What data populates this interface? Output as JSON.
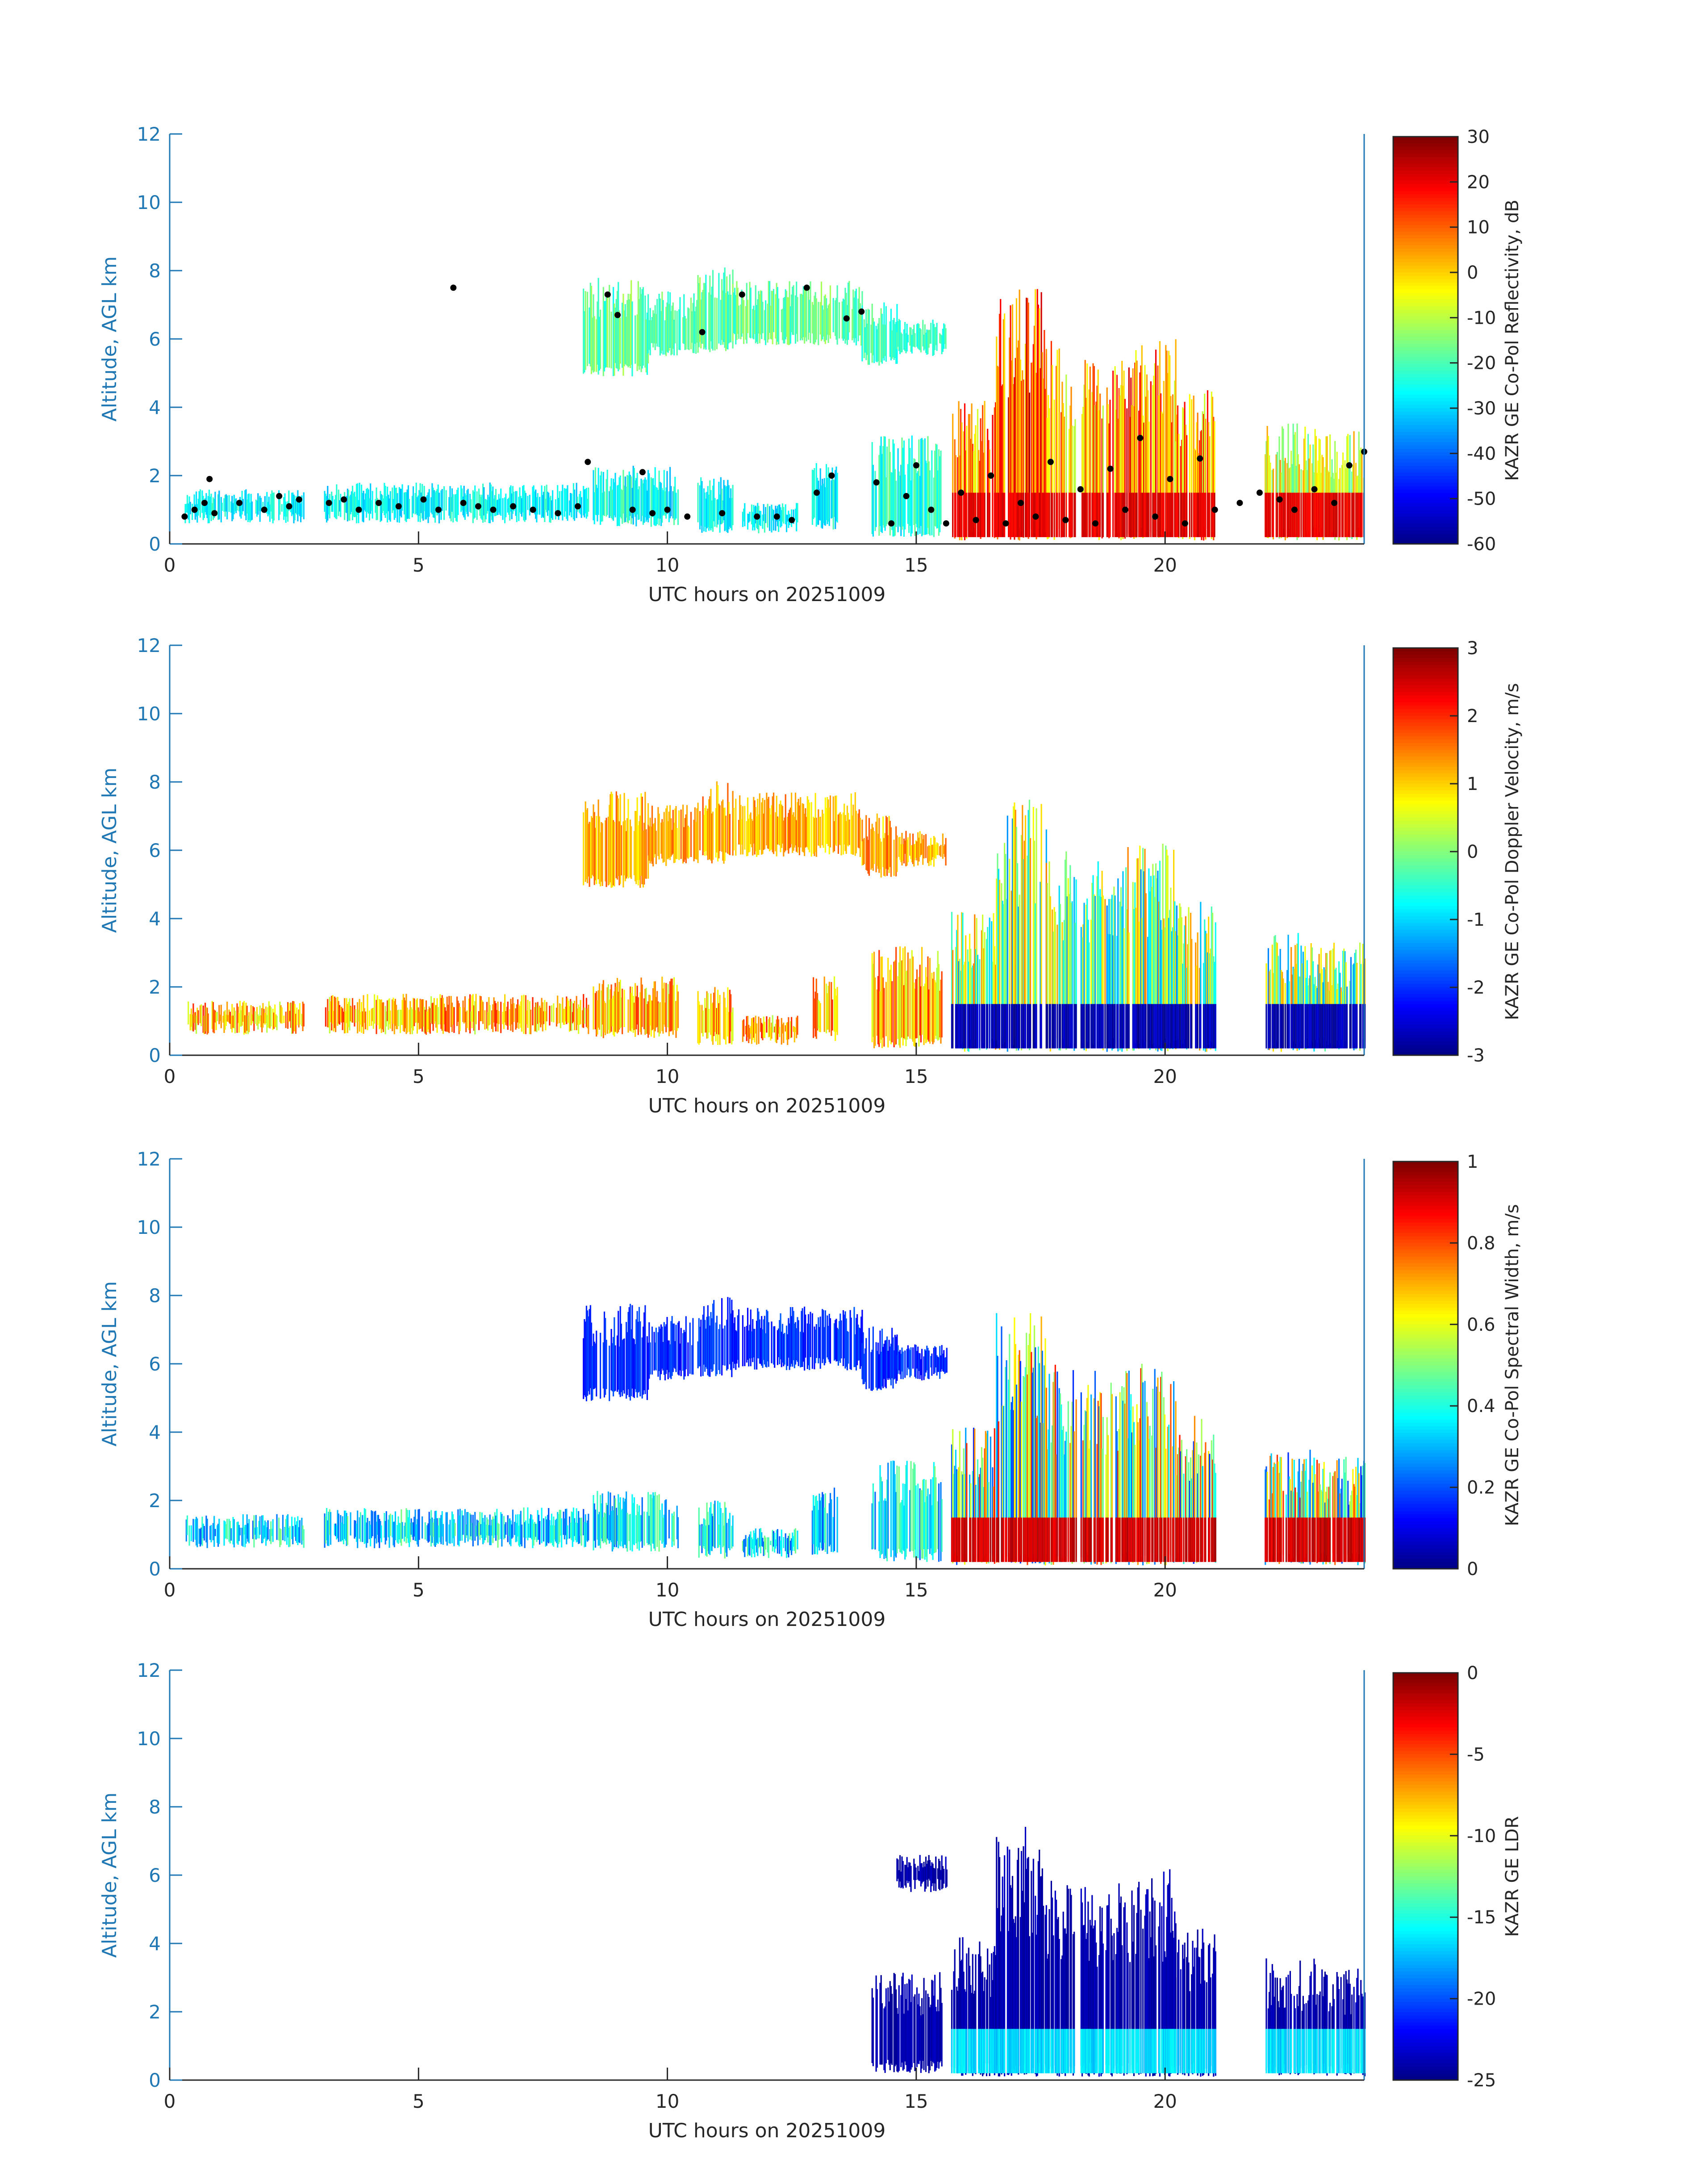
{
  "chart_data": [
    {
      "type": "heatmap",
      "panel": "reflectivity",
      "xlabel": "UTC hours on 20251009",
      "ylabel": "Altitude, AGL km",
      "xlim": [
        0,
        24
      ],
      "ylim": [
        0,
        12
      ],
      "xticks": [
        0,
        5,
        10,
        15,
        20
      ],
      "yticks": [
        0,
        2,
        4,
        6,
        8,
        10,
        12
      ],
      "colorbar": {
        "label": "KAZR GE Co-Pol Reflectivity, dB",
        "range": [
          -60,
          30
        ],
        "ticks": [
          30,
          20,
          10,
          0,
          -10,
          -20,
          -30,
          -40,
          -50,
          -60
        ],
        "colormap": "jet"
      },
      "overlay": {
        "type": "scatter",
        "color": "#000000",
        "points": [
          [
            0.3,
            0.8
          ],
          [
            0.5,
            1.0
          ],
          [
            0.7,
            1.2
          ],
          [
            0.8,
            1.9
          ],
          [
            0.9,
            0.9
          ],
          [
            1.4,
            1.2
          ],
          [
            1.9,
            1.0
          ],
          [
            2.2,
            1.4
          ],
          [
            2.4,
            1.1
          ],
          [
            2.6,
            1.3
          ],
          [
            3.2,
            1.2
          ],
          [
            3.5,
            1.3
          ],
          [
            3.8,
            1.0
          ],
          [
            4.2,
            1.2
          ],
          [
            4.6,
            1.1
          ],
          [
            5.1,
            1.3
          ],
          [
            5.4,
            1.0
          ],
          [
            5.7,
            7.5
          ],
          [
            5.9,
            1.2
          ],
          [
            6.2,
            1.1
          ],
          [
            6.5,
            1.0
          ],
          [
            6.9,
            1.1
          ],
          [
            7.3,
            1.0
          ],
          [
            7.8,
            0.9
          ],
          [
            8.2,
            1.1
          ],
          [
            8.4,
            2.4
          ],
          [
            8.8,
            7.3
          ],
          [
            9.0,
            6.7
          ],
          [
            9.3,
            1.0
          ],
          [
            9.5,
            2.1
          ],
          [
            9.7,
            0.9
          ],
          [
            10.0,
            1.0
          ],
          [
            10.4,
            0.8
          ],
          [
            10.7,
            6.2
          ],
          [
            11.1,
            0.9
          ],
          [
            11.5,
            7.3
          ],
          [
            11.8,
            0.8
          ],
          [
            12.2,
            0.8
          ],
          [
            12.5,
            0.7
          ],
          [
            12.8,
            7.5
          ],
          [
            13.0,
            1.5
          ],
          [
            13.3,
            2.0
          ],
          [
            13.6,
            6.6
          ],
          [
            13.9,
            6.8
          ],
          [
            14.2,
            1.8
          ],
          [
            14.5,
            0.6
          ],
          [
            14.8,
            1.4
          ],
          [
            15.0,
            2.3
          ],
          [
            15.3,
            1.0
          ],
          [
            15.6,
            0.6
          ],
          [
            15.9,
            1.5
          ],
          [
            16.2,
            0.7
          ],
          [
            16.5,
            2.0
          ],
          [
            16.8,
            0.6
          ],
          [
            17.1,
            1.2
          ],
          [
            17.4,
            0.8
          ],
          [
            17.7,
            2.4
          ],
          [
            18.0,
            0.7
          ],
          [
            18.3,
            1.6
          ],
          [
            18.6,
            0.6
          ],
          [
            18.9,
            2.2
          ],
          [
            19.2,
            1.0
          ],
          [
            19.5,
            3.1
          ],
          [
            19.8,
            0.8
          ],
          [
            20.1,
            1.9
          ],
          [
            20.4,
            0.6
          ],
          [
            20.7,
            2.5
          ],
          [
            21.0,
            1.0
          ],
          [
            21.5,
            1.2
          ],
          [
            21.9,
            1.5
          ],
          [
            22.3,
            1.3
          ],
          [
            22.6,
            1.0
          ],
          [
            23.0,
            1.6
          ],
          [
            23.4,
            1.2
          ],
          [
            23.7,
            2.3
          ],
          [
            24.0,
            2.7
          ]
        ]
      }
    },
    {
      "type": "heatmap",
      "panel": "doppler_velocity",
      "xlabel": "UTC hours on 20251009",
      "ylabel": "Altitude, AGL km",
      "xlim": [
        0,
        24
      ],
      "ylim": [
        0,
        12
      ],
      "xticks": [
        0,
        5,
        10,
        15,
        20
      ],
      "yticks": [
        0,
        2,
        4,
        6,
        8,
        10,
        12
      ],
      "colorbar": {
        "label": "KAZR GE Co-Pol Doppler Velocity, m/s",
        "range": [
          -3,
          3
        ],
        "ticks": [
          3,
          2,
          1,
          0,
          -1,
          -2,
          -3
        ],
        "colormap": "jet"
      }
    },
    {
      "type": "heatmap",
      "panel": "spectral_width",
      "xlabel": "UTC hours on 20251009",
      "ylabel": "Altitude, AGL km",
      "xlim": [
        0,
        24
      ],
      "ylim": [
        0,
        12
      ],
      "xticks": [
        0,
        5,
        10,
        15,
        20
      ],
      "yticks": [
        0,
        2,
        4,
        6,
        8,
        10,
        12
      ],
      "colorbar": {
        "label": "KAZR GE Co-Pol Spectral Width, m/s",
        "range": [
          0,
          1
        ],
        "ticks": [
          1,
          0.8,
          0.6,
          0.4,
          0.2,
          0
        ],
        "colormap": "jet"
      }
    },
    {
      "type": "heatmap",
      "panel": "ldr",
      "xlabel": "UTC hours on 20251009",
      "ylabel": "Altitude, AGL km",
      "xlim": [
        0,
        24
      ],
      "ylim": [
        0,
        12
      ],
      "xticks": [
        0,
        5,
        10,
        15,
        20
      ],
      "yticks": [
        0,
        2,
        4,
        6,
        8,
        10,
        12
      ],
      "colorbar": {
        "label": "KAZR GE LDR",
        "range": [
          -25,
          0
        ],
        "ticks": [
          0,
          -5,
          -10,
          -15,
          -20,
          -25
        ],
        "colormap": "jet"
      }
    }
  ],
  "echo_regions": {
    "upper_cloud": [
      {
        "x": [
          8.3,
          9.6
        ],
        "y": [
          4.9,
          7.8
        ],
        "v": [
          0.38,
          0.55
        ]
      },
      {
        "x": [
          9.6,
          10.6
        ],
        "y": [
          5.5,
          7.4
        ],
        "v": [
          0.4,
          0.52
        ]
      },
      {
        "x": [
          10.6,
          11.3
        ],
        "y": [
          5.6,
          8.1
        ],
        "v": [
          0.4,
          0.55
        ]
      },
      {
        "x": [
          11.3,
          13.9
        ],
        "y": [
          5.8,
          7.7
        ],
        "v": [
          0.4,
          0.55
        ]
      },
      {
        "x": [
          13.9,
          14.6
        ],
        "y": [
          5.2,
          7.1
        ],
        "v": [
          0.38,
          0.5
        ]
      },
      {
        "x": [
          14.6,
          15.6
        ],
        "y": [
          5.5,
          6.6
        ],
        "v": [
          0.38,
          0.5
        ]
      }
    ],
    "boundary_layer": [
      {
        "x": [
          0.3,
          2.7
        ],
        "y": [
          0.6,
          1.6
        ],
        "v": [
          0.3,
          0.45
        ]
      },
      {
        "x": [
          3.1,
          8.4
        ],
        "y": [
          0.6,
          1.8
        ],
        "v": [
          0.3,
          0.45
        ]
      },
      {
        "x": [
          8.5,
          10.2
        ],
        "y": [
          0.5,
          2.3
        ],
        "v": [
          0.3,
          0.48
        ]
      },
      {
        "x": [
          10.6,
          11.3
        ],
        "y": [
          0.3,
          2.0
        ],
        "v": [
          0.3,
          0.45
        ]
      },
      {
        "x": [
          11.5,
          12.6
        ],
        "y": [
          0.3,
          1.2
        ],
        "v": [
          0.3,
          0.45
        ]
      },
      {
        "x": [
          12.9,
          13.4
        ],
        "y": [
          0.4,
          2.4
        ],
        "v": [
          0.3,
          0.45
        ]
      },
      {
        "x": [
          14.1,
          15.5
        ],
        "y": [
          0.2,
          3.2
        ],
        "v": [
          0.32,
          0.5
        ]
      }
    ],
    "precipitation_columns": [
      {
        "x": [
          15.7,
          16.6
        ],
        "y": [
          0.1,
          4.2
        ],
        "v": [
          0.55,
          0.9
        ]
      },
      {
        "x": [
          16.6,
          17.6
        ],
        "y": [
          0.1,
          7.5
        ],
        "v": [
          0.65,
          0.97
        ]
      },
      {
        "x": [
          17.6,
          18.2
        ],
        "y": [
          0.1,
          6.0
        ],
        "v": [
          0.55,
          0.85
        ]
      },
      {
        "x": [
          18.3,
          19.2
        ],
        "y": [
          0.1,
          5.8
        ],
        "v": [
          0.55,
          0.88
        ]
      },
      {
        "x": [
          19.2,
          20.2
        ],
        "y": [
          0.1,
          6.2
        ],
        "v": [
          0.55,
          0.92
        ]
      },
      {
        "x": [
          20.2,
          21.0
        ],
        "y": [
          0.1,
          4.5
        ],
        "v": [
          0.55,
          0.88
        ]
      },
      {
        "x": [
          22.0,
          23.0
        ],
        "y": [
          0.1,
          3.6
        ],
        "v": [
          0.45,
          0.75
        ]
      },
      {
        "x": [
          23.0,
          24.0
        ],
        "y": [
          0.1,
          3.3
        ],
        "v": [
          0.45,
          0.72
        ]
      }
    ]
  }
}
